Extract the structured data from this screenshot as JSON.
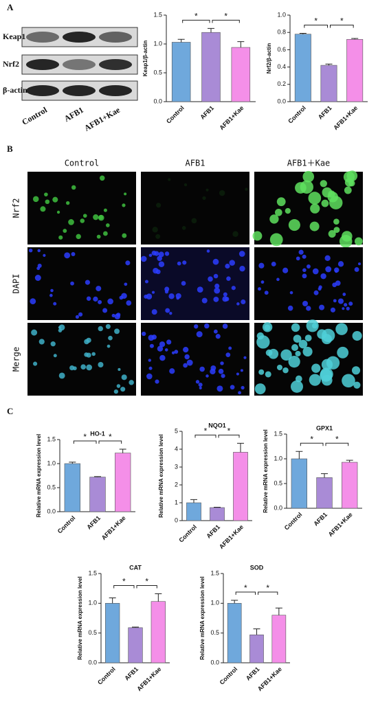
{
  "panels": {
    "labels": [
      "A",
      "B",
      "C"
    ],
    "blot_rows": [
      "Keap1",
      "Nrf2",
      "β-actin"
    ],
    "blot_lanes": [
      "Control",
      "AFB1",
      "AFB1+Kae"
    ],
    "image_columns": [
      "Control",
      "AFB1",
      "AFB1＋Kae"
    ],
    "image_rows": [
      "Nrf2",
      "DAPI",
      "Merge"
    ]
  },
  "chart_data": [
    {
      "type": "bar",
      "ylabel": "Keap1/β-actin",
      "categories": [
        "Control",
        "AFB1",
        "AFB1+Kae"
      ],
      "values": [
        1.03,
        1.2,
        0.94
      ],
      "errors": [
        0.05,
        0.07,
        0.1
      ],
      "colors": [
        "#6fa8dc",
        "#a98bd6",
        "#f48fe8"
      ],
      "ylim": [
        0,
        1.5
      ],
      "yticks": [
        {
          "value": 0,
          "label": "0.0"
        },
        0.5,
        {
          "value": 1,
          "label": "1.0"
        },
        1.5
      ],
      "annotations": [
        "*",
        "*"
      ]
    },
    {
      "type": "bar",
      "ylabel": "Nrf2/β-actin",
      "categories": [
        "Control",
        "AFB1",
        "AFB1+Kae"
      ],
      "values": [
        0.78,
        0.42,
        0.72
      ],
      "errors": [
        0.01,
        0.015,
        0.01
      ],
      "colors": [
        "#6fa8dc",
        "#a98bd6",
        "#f48fe8"
      ],
      "ylim": [
        0,
        1
      ],
      "yticks": [
        {
          "value": 0,
          "label": "0.0"
        },
        0.2,
        0.4,
        0.6,
        0.8,
        {
          "value": 1,
          "label": "1.0"
        }
      ],
      "annotations": [
        "*",
        "*"
      ]
    },
    {
      "type": "bar",
      "title": "HO-1",
      "ylabel": "Relative mRNA expression level",
      "categories": [
        "Control",
        "AFB1",
        "AFB1+Kae"
      ],
      "values": [
        1.0,
        0.72,
        1.22
      ],
      "errors": [
        0.03,
        0.01,
        0.08
      ],
      "colors": [
        "#6fa8dc",
        "#a98bd6",
        "#f48fe8"
      ],
      "ylim": [
        0,
        1.5
      ],
      "yticks": [
        {
          "value": 0,
          "label": "0.0"
        },
        0.5,
        {
          "value": 1,
          "label": "1.0"
        },
        1.5
      ],
      "annotations": [
        "*",
        "*"
      ]
    },
    {
      "type": "bar",
      "title": "NQO1",
      "ylabel": "Relative mRNA expression level",
      "categories": [
        "Control",
        "AFB1",
        "AFB1+Kae"
      ],
      "values": [
        1.0,
        0.73,
        3.83
      ],
      "errors": [
        0.18,
        0.02,
        0.5
      ],
      "colors": [
        "#6fa8dc",
        "#a98bd6",
        "#f48fe8"
      ],
      "ylim": [
        0,
        5
      ],
      "yticks": [
        0,
        1,
        2,
        3,
        4,
        5
      ],
      "annotations": [
        "*",
        "*"
      ]
    },
    {
      "type": "bar",
      "title": "GPX1",
      "ylabel": "Relative mRNA expression level",
      "categories": [
        "Control",
        "AFB1",
        "AFB1+Kae"
      ],
      "values": [
        1.0,
        0.62,
        0.93
      ],
      "errors": [
        0.15,
        0.08,
        0.04
      ],
      "colors": [
        "#6fa8dc",
        "#a98bd6",
        "#f48fe8"
      ],
      "ylim": [
        0,
        1.5
      ],
      "yticks": [
        {
          "value": 0,
          "label": "0.0"
        },
        0.5,
        {
          "value": 1,
          "label": "1.0"
        },
        1.5
      ],
      "annotations": [
        "*",
        "*"
      ]
    },
    {
      "type": "bar",
      "title": "CAT",
      "ylabel": "Relative mRNA expression level",
      "categories": [
        "Control",
        "AFB1",
        "AFB1+Kae"
      ],
      "values": [
        1.0,
        0.59,
        1.03
      ],
      "errors": [
        0.09,
        0.01,
        0.13
      ],
      "colors": [
        "#6fa8dc",
        "#a98bd6",
        "#f48fe8"
      ],
      "ylim": [
        0,
        1.5
      ],
      "yticks": [
        {
          "value": 0,
          "label": "0.0"
        },
        0.5,
        {
          "value": 1,
          "label": "1.0"
        },
        1.5
      ],
      "annotations": [
        "*",
        "*"
      ]
    },
    {
      "type": "bar",
      "title": "SOD",
      "ylabel": "Relative mRNA expression level",
      "categories": [
        "Control",
        "AFB1",
        "AFB1+Kae"
      ],
      "values": [
        1.0,
        0.47,
        0.8
      ],
      "errors": [
        0.05,
        0.1,
        0.12
      ],
      "colors": [
        "#6fa8dc",
        "#a98bd6",
        "#f48fe8"
      ],
      "ylim": [
        0,
        1.5
      ],
      "yticks": [
        {
          "value": 0,
          "label": "0.0"
        },
        0.5,
        {
          "value": 1,
          "label": "1.0"
        },
        1.5
      ],
      "annotations": [
        "*",
        "*"
      ]
    }
  ]
}
